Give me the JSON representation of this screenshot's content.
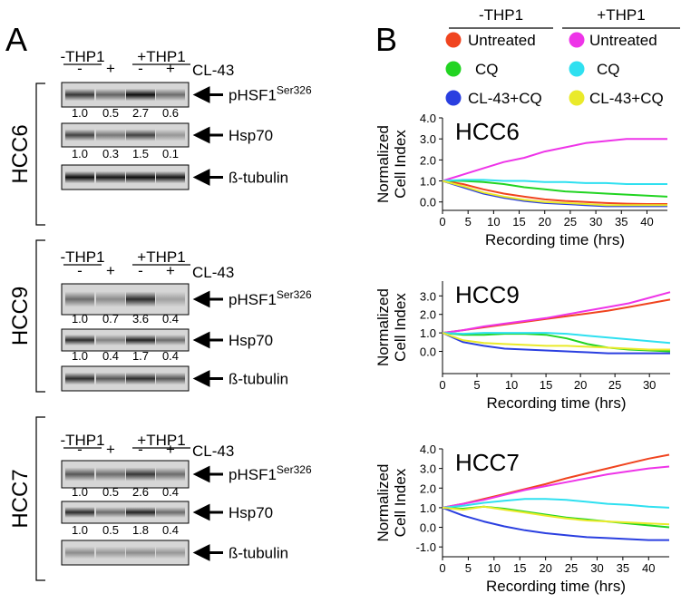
{
  "panel_a": {
    "label": "A",
    "blots": [
      {
        "cell_line": "HCC6",
        "groups": [
          "-THP1",
          "+THP1"
        ],
        "treatment": "CL-43",
        "lanes": [
          "-",
          "+",
          "-",
          "+"
        ],
        "rows": [
          {
            "label": "pHSF1",
            "sup": "Ser326",
            "quant": [
              "1.0",
              "0.5",
              "2.7",
              "0.6"
            ]
          },
          {
            "label": "Hsp70",
            "quant": [
              "1.0",
              "0.3",
              "1.5",
              "0.1"
            ]
          },
          {
            "label": "ß-tubulin"
          }
        ]
      },
      {
        "cell_line": "HCC9",
        "groups": [
          "-THP1",
          "+THP1"
        ],
        "treatment": "CL-43",
        "lanes": [
          "-",
          "+",
          "-",
          "+"
        ],
        "rows": [
          {
            "label": "pHSF1",
            "sup": "Ser326",
            "quant": [
              "1.0",
              "0.7",
              "3.6",
              "0.4"
            ]
          },
          {
            "label": "Hsp70",
            "quant": [
              "1.0",
              "0.4",
              "1.7",
              "0.4"
            ]
          },
          {
            "label": "ß-tubulin"
          }
        ]
      },
      {
        "cell_line": "HCC7",
        "groups": [
          "-THP1",
          "+THP1"
        ],
        "treatment": "CL-43",
        "lanes": [
          "-",
          "+",
          "-",
          "+"
        ],
        "rows": [
          {
            "label": "pHSF1",
            "sup": "Ser326",
            "quant": [
              "1.0",
              "0.5",
              "2.6",
              "0.4"
            ]
          },
          {
            "label": "Hsp70",
            "quant": [
              "1.0",
              "0.5",
              "1.8",
              "0.4"
            ]
          },
          {
            "label": "ß-tubulin"
          }
        ]
      }
    ]
  },
  "panel_b": {
    "label": "B",
    "legend": {
      "groups": [
        {
          "title": "-THP1",
          "items": [
            {
              "label": "Untreated",
              "color": "#f0441f"
            },
            {
              "label": "CQ",
              "color": "#22d422"
            },
            {
              "label": "CL-43+CQ",
              "color": "#2a3fe0"
            }
          ]
        },
        {
          "title": "+THP1",
          "items": [
            {
              "label": "Untreated",
              "color": "#ee34e8"
            },
            {
              "label": "CQ",
              "color": "#2fe0f0"
            },
            {
              "label": "CL-43+CQ",
              "color": "#eaea2a"
            }
          ]
        }
      ]
    }
  },
  "chart_data": [
    {
      "type": "line",
      "title": "HCC6",
      "ylabel": [
        "Normalized",
        "Cell Index"
      ],
      "xlabel": "Recording time (hrs)",
      "x": [
        0,
        4,
        8,
        12,
        16,
        20,
        24,
        28,
        32,
        36,
        40,
        44
      ],
      "xlim": [
        0,
        44
      ],
      "xticks": [
        0,
        5,
        10,
        15,
        20,
        25,
        30,
        35,
        40
      ],
      "ylim": [
        -0.4,
        4.0
      ],
      "yticks": [
        {
          "value": 0,
          "label": "0.0"
        },
        {
          "value": 1,
          "label": "1.0"
        },
        {
          "value": 2,
          "label": "2.0"
        },
        {
          "value": 3,
          "label": "3.0"
        },
        {
          "value": 4,
          "label": "4.0"
        }
      ],
      "series": [
        {
          "color": "#f0441f",
          "values": [
            1.0,
            0.85,
            0.6,
            0.4,
            0.25,
            0.12,
            0.05,
            0.0,
            -0.05,
            -0.08,
            -0.1,
            -0.1
          ]
        },
        {
          "color": "#22d422",
          "values": [
            1.0,
            1.0,
            0.95,
            0.85,
            0.7,
            0.6,
            0.5,
            0.45,
            0.4,
            0.35,
            0.3,
            0.25
          ]
        },
        {
          "color": "#2a3fe0",
          "values": [
            1.0,
            0.7,
            0.4,
            0.2,
            0.05,
            -0.05,
            -0.1,
            -0.15,
            -0.2,
            -0.2,
            -0.2,
            -0.2
          ]
        },
        {
          "color": "#ee34e8",
          "values": [
            1.0,
            1.3,
            1.6,
            1.9,
            2.1,
            2.4,
            2.6,
            2.8,
            2.9,
            3.0,
            3.0,
            3.0
          ]
        },
        {
          "color": "#2fe0f0",
          "values": [
            1.0,
            1.05,
            1.05,
            1.0,
            1.0,
            0.95,
            0.95,
            0.9,
            0.9,
            0.85,
            0.85,
            0.85
          ]
        },
        {
          "color": "#eaea2a",
          "values": [
            1.0,
            0.75,
            0.45,
            0.25,
            0.1,
            0.0,
            -0.05,
            -0.1,
            -0.15,
            -0.15,
            -0.15,
            -0.15
          ]
        }
      ]
    },
    {
      "type": "line",
      "title": "HCC9",
      "ylabel": [
        "Normalized",
        "Cell Index"
      ],
      "xlabel": "Recording time (hrs)",
      "x": [
        0,
        3,
        6,
        9,
        12,
        15,
        18,
        21,
        24,
        27,
        30,
        33
      ],
      "xlim": [
        0,
        33
      ],
      "xticks": [
        0,
        5,
        10,
        15,
        20,
        25,
        30
      ],
      "ylim": [
        -1.2,
        3.8
      ],
      "yticks": [
        {
          "value": 0,
          "label": "0.0"
        },
        {
          "value": 1,
          "label": "1.0"
        },
        {
          "value": 2,
          "label": "2.0"
        },
        {
          "value": 3,
          "label": "3.0"
        }
      ],
      "series": [
        {
          "color": "#f0441f",
          "values": [
            1.0,
            1.15,
            1.3,
            1.45,
            1.6,
            1.75,
            1.9,
            2.05,
            2.2,
            2.4,
            2.6,
            2.8
          ]
        },
        {
          "color": "#22d422",
          "values": [
            1.0,
            0.9,
            0.9,
            0.95,
            0.95,
            0.9,
            0.7,
            0.4,
            0.2,
            0.1,
            0.05,
            0.0
          ]
        },
        {
          "color": "#2a3fe0",
          "values": [
            1.0,
            0.5,
            0.3,
            0.15,
            0.1,
            0.05,
            0.0,
            -0.05,
            -0.1,
            -0.1,
            -0.1,
            -0.1
          ]
        },
        {
          "color": "#ee34e8",
          "values": [
            1.0,
            1.15,
            1.35,
            1.5,
            1.65,
            1.8,
            2.0,
            2.2,
            2.4,
            2.6,
            2.9,
            3.2
          ]
        },
        {
          "color": "#2fe0f0",
          "values": [
            1.0,
            0.95,
            1.0,
            1.0,
            1.0,
            1.0,
            0.95,
            0.85,
            0.75,
            0.65,
            0.55,
            0.45
          ]
        },
        {
          "color": "#eaea2a",
          "values": [
            1.0,
            0.6,
            0.45,
            0.4,
            0.35,
            0.3,
            0.3,
            0.25,
            0.2,
            0.15,
            0.1,
            0.1
          ]
        }
      ]
    },
    {
      "type": "line",
      "title": "HCC7",
      "ylabel": [
        "Normalized",
        "Cell Index"
      ],
      "xlabel": "Recording time (hrs)",
      "x": [
        0,
        4,
        8,
        12,
        16,
        20,
        24,
        28,
        32,
        36,
        40,
        44
      ],
      "xlim": [
        0,
        44
      ],
      "xticks": [
        0,
        5,
        10,
        15,
        20,
        25,
        30,
        35,
        40
      ],
      "ylim": [
        -1.5,
        4.0
      ],
      "yticks": [
        {
          "value": -1,
          "label": "-1.0"
        },
        {
          "value": 0,
          "label": "0.0"
        },
        {
          "value": 1,
          "label": "1.0"
        },
        {
          "value": 2,
          "label": "2.0"
        },
        {
          "value": 3,
          "label": "3.0"
        },
        {
          "value": 4,
          "label": "4.0"
        }
      ],
      "series": [
        {
          "color": "#f0441f",
          "values": [
            1.0,
            1.2,
            1.45,
            1.7,
            1.95,
            2.2,
            2.5,
            2.75,
            3.0,
            3.25,
            3.5,
            3.7
          ]
        },
        {
          "color": "#22d422",
          "values": [
            1.0,
            0.95,
            1.05,
            0.95,
            0.8,
            0.65,
            0.5,
            0.4,
            0.3,
            0.2,
            0.1,
            0.0
          ]
        },
        {
          "color": "#2a3fe0",
          "values": [
            1.0,
            0.6,
            0.3,
            0.05,
            -0.15,
            -0.3,
            -0.4,
            -0.5,
            -0.55,
            -0.6,
            -0.65,
            -0.65
          ]
        },
        {
          "color": "#ee34e8",
          "values": [
            1.0,
            1.2,
            1.4,
            1.65,
            1.9,
            2.1,
            2.3,
            2.5,
            2.7,
            2.85,
            3.0,
            3.1
          ]
        },
        {
          "color": "#2fe0f0",
          "values": [
            1.0,
            1.1,
            1.25,
            1.35,
            1.45,
            1.45,
            1.4,
            1.3,
            1.2,
            1.15,
            1.05,
            1.0
          ]
        },
        {
          "color": "#eaea2a",
          "values": [
            1.0,
            0.9,
            1.05,
            0.9,
            0.75,
            0.6,
            0.45,
            0.35,
            0.3,
            0.25,
            0.2,
            0.15
          ]
        }
      ]
    }
  ]
}
